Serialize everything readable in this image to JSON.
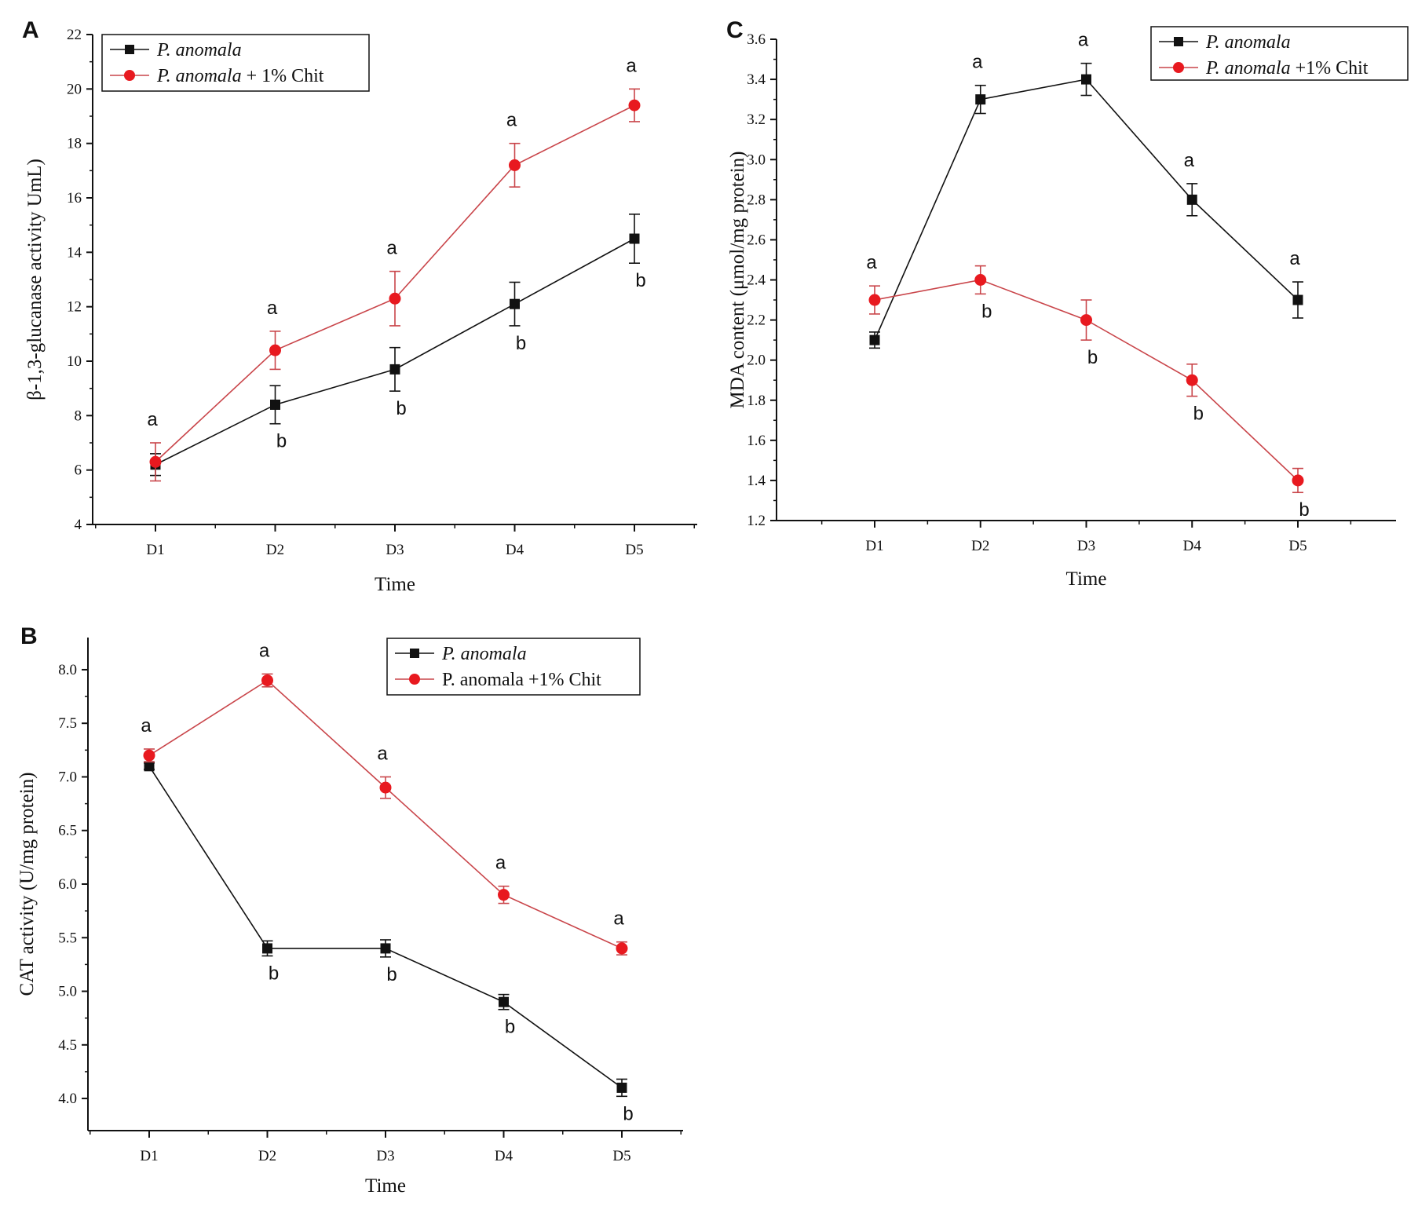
{
  "colors": {
    "black_series": "#111111",
    "red_series": "#e8191f",
    "red_line": "#c9454a",
    "axis": "#111111"
  },
  "chart_data": [
    {
      "panel": "A",
      "type": "line",
      "title": "",
      "xlabel": "Time",
      "ylabel": "β-1,3-glucanase activity UmL)",
      "categories": [
        "D1",
        "D2",
        "D3",
        "D4",
        "D5"
      ],
      "ylim": [
        4,
        22
      ],
      "yticks": [
        "4",
        "6",
        "8",
        "10",
        "12",
        "14",
        "16",
        "18",
        "20",
        "22"
      ],
      "legend_position": "top-left",
      "series": [
        {
          "name_italic": "P. anomala",
          "name_plain": "",
          "marker": "square",
          "color": "#111111",
          "values": [
            6.2,
            8.4,
            9.7,
            12.1,
            14.5
          ],
          "errors": [
            0.4,
            0.7,
            0.8,
            0.8,
            0.9
          ],
          "letters": [
            "",
            "b",
            "b",
            "b",
            "b"
          ]
        },
        {
          "name_italic": "P. anomala",
          "name_plain": " + 1% Chit",
          "marker": "circle",
          "color": "#e8191f",
          "values": [
            6.3,
            10.4,
            12.3,
            17.2,
            19.4
          ],
          "errors": [
            0.7,
            0.7,
            1.0,
            0.8,
            0.6
          ],
          "letters": [
            "a",
            "a",
            "a",
            "a",
            "a"
          ]
        }
      ]
    },
    {
      "panel": "B",
      "type": "line",
      "title": "",
      "xlabel": "Time",
      "ylabel": "CAT activity (U/mg protein)",
      "categories": [
        "D1",
        "D2",
        "D3",
        "D4",
        "D5"
      ],
      "ylim": [
        3.7,
        8.3
      ],
      "yticks": [
        "4.0",
        "4.5",
        "5.0",
        "5.5",
        "6.0",
        "6.5",
        "7.0",
        "7.5",
        "8.0"
      ],
      "legend_position": "top-right",
      "series": [
        {
          "name_italic": "P. anomala",
          "name_plain": "",
          "marker": "square",
          "color": "#111111",
          "values": [
            7.1,
            5.4,
            5.4,
            4.9,
            4.1
          ],
          "errors": [
            0.03,
            0.07,
            0.08,
            0.07,
            0.08
          ],
          "letters": [
            "",
            "b",
            "b",
            "b",
            "b"
          ]
        },
        {
          "name_italic": "",
          "name_plain": "P. anomala +1% Chit",
          "marker": "circle",
          "color": "#e8191f",
          "values": [
            7.2,
            7.9,
            6.9,
            5.9,
            5.4
          ],
          "errors": [
            0.06,
            0.06,
            0.1,
            0.08,
            0.06
          ],
          "letters": [
            "a",
            "a",
            "a",
            "a",
            "a"
          ]
        }
      ]
    },
    {
      "panel": "C",
      "type": "line",
      "title": "",
      "xlabel": "Time",
      "ylabel": "MDA content (μmol/mg protein)",
      "categories": [
        "D1",
        "D2",
        "D3",
        "D4",
        "D5"
      ],
      "ylim": [
        1.2,
        3.6
      ],
      "yticks": [
        "1.2",
        "1.4",
        "1.6",
        "1.8",
        "2.0",
        "2.2",
        "2.4",
        "2.6",
        "2.8",
        "3.0",
        "3.2",
        "3.4",
        "3.6"
      ],
      "legend_position": "top-right",
      "series": [
        {
          "name_italic": "P. anomala",
          "name_plain": "",
          "marker": "square",
          "color": "#111111",
          "values": [
            2.1,
            3.3,
            3.4,
            2.8,
            2.3
          ],
          "errors": [
            0.04,
            0.07,
            0.08,
            0.08,
            0.09
          ],
          "letters": [
            "",
            "a",
            "a",
            "a",
            "a"
          ]
        },
        {
          "name_italic": "P. anomala",
          "name_plain": " +1% Chit",
          "marker": "circle",
          "color": "#e8191f",
          "values": [
            2.3,
            2.4,
            2.2,
            1.9,
            1.4
          ],
          "errors": [
            0.07,
            0.07,
            0.1,
            0.08,
            0.06
          ],
          "letters": [
            "a",
            "b",
            "b",
            "b",
            "b"
          ]
        }
      ]
    }
  ]
}
